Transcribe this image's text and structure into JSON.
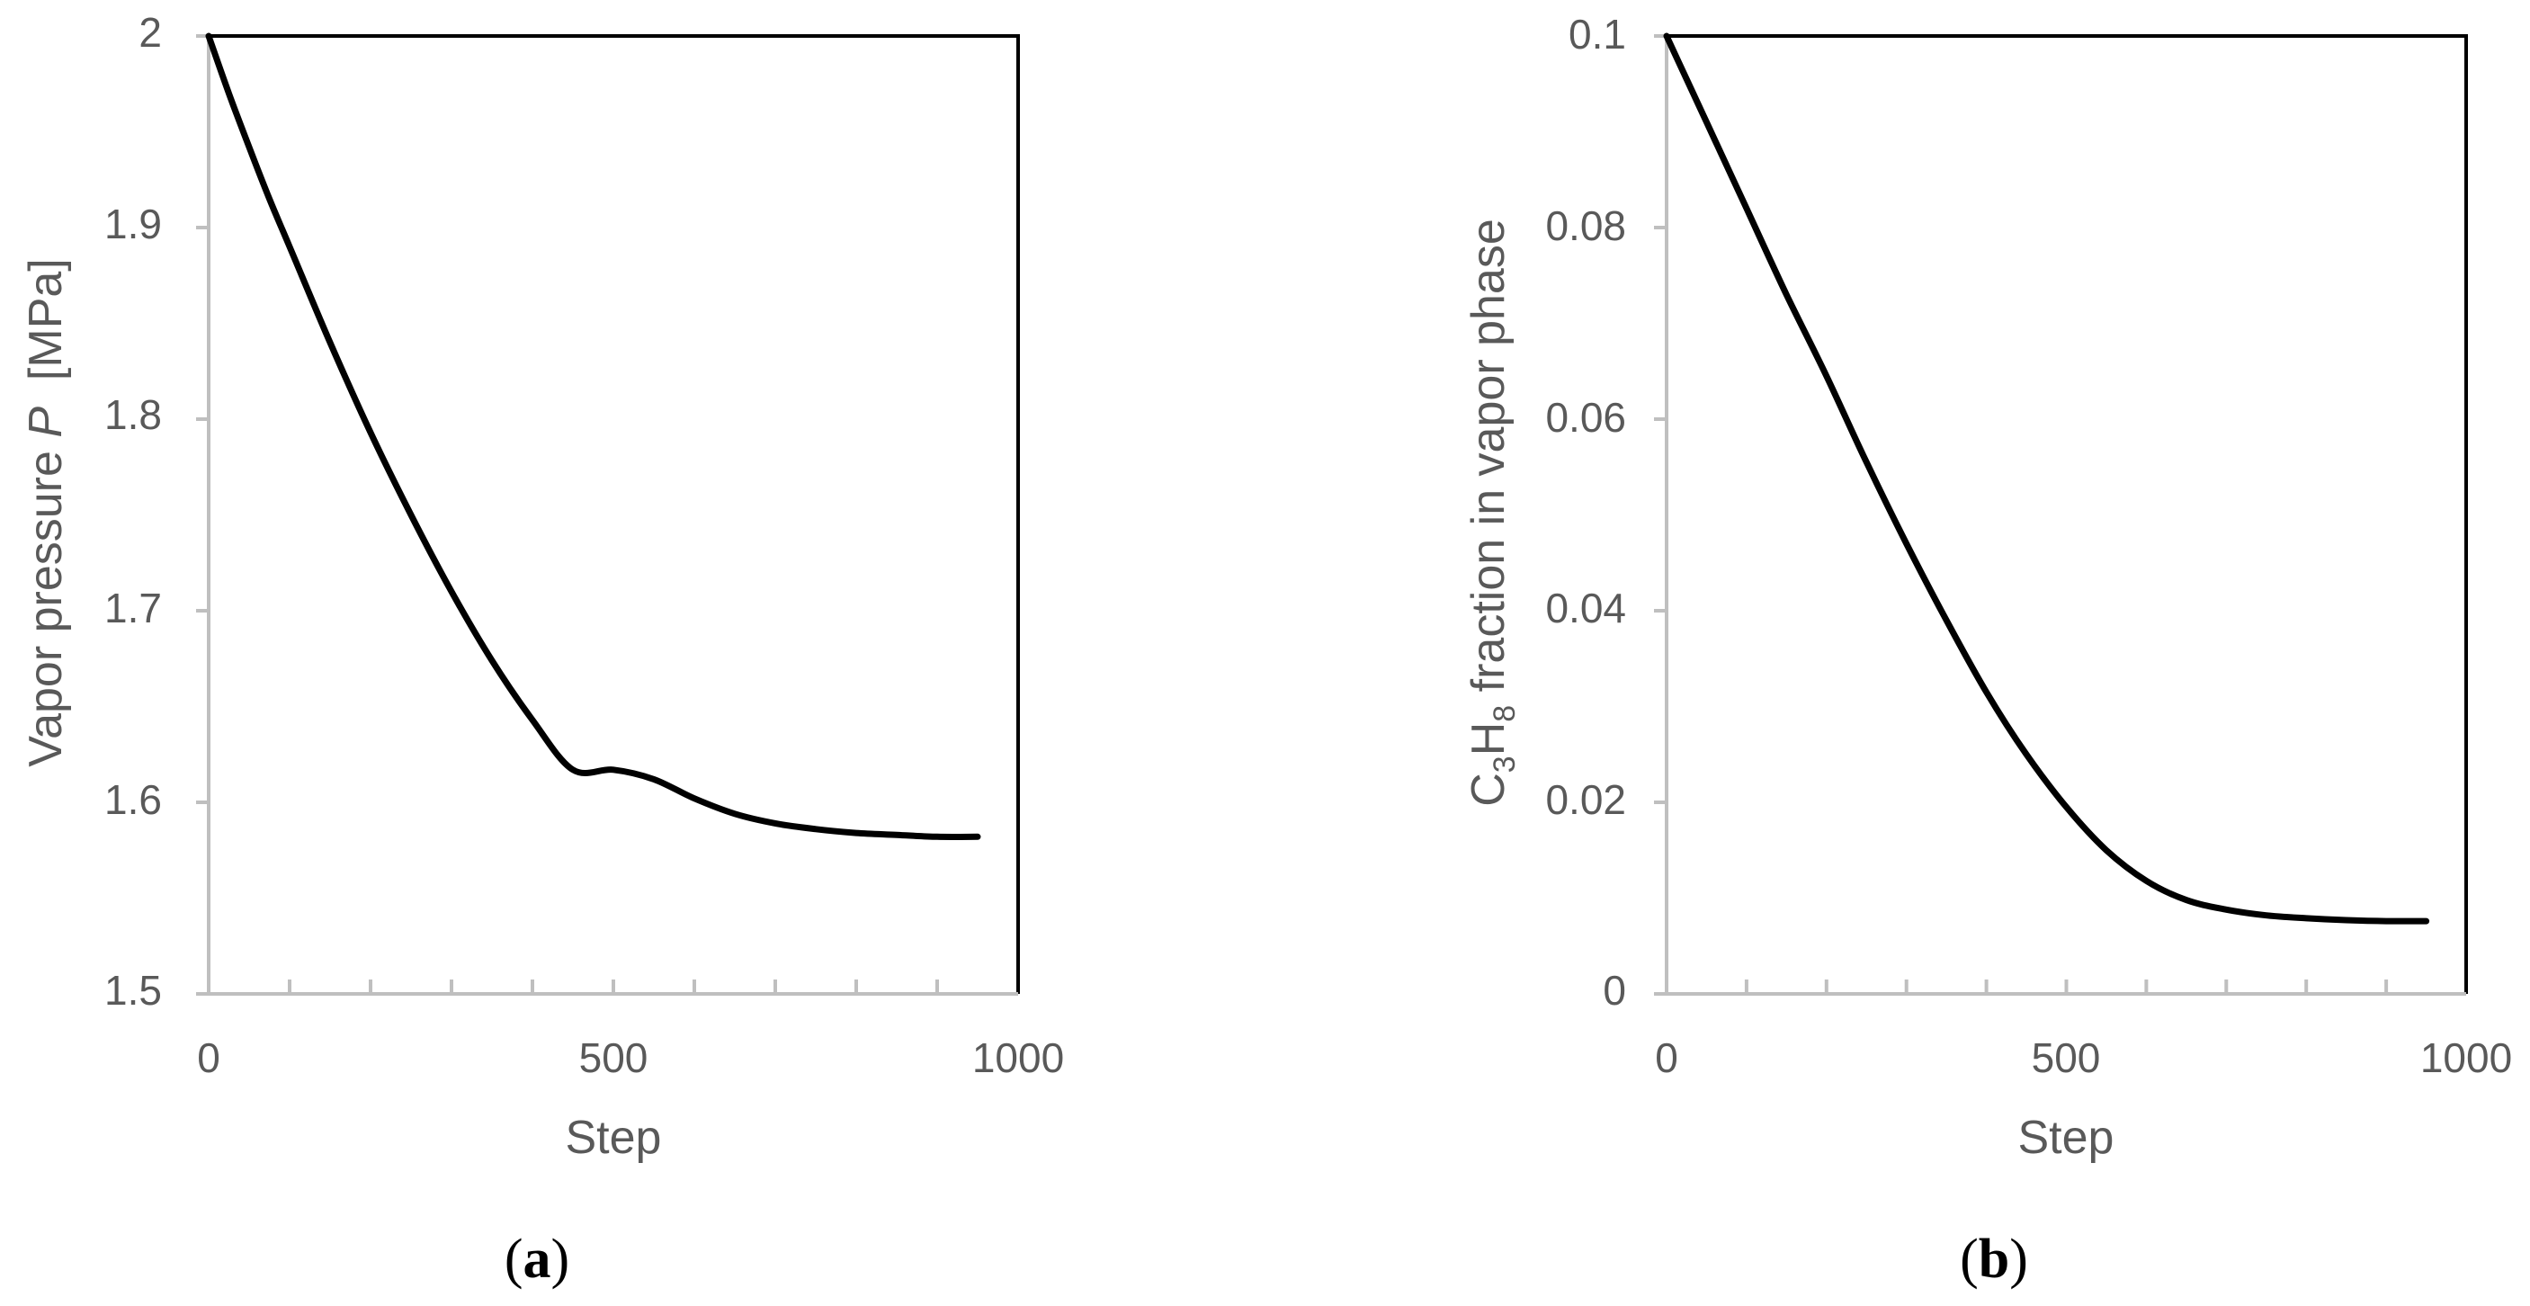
{
  "chart_data": [
    {
      "type": "line",
      "panel_label": {
        "open": "(",
        "letter": "a",
        "close": ")"
      },
      "xlabel": "Step",
      "ylabel": {
        "prefix": "Vapor pressure ",
        "symbol": "P",
        "suffix": "  [MPa]"
      },
      "xlim": [
        0,
        1000
      ],
      "ylim": [
        1.5,
        2
      ],
      "x_ticks": [
        0,
        500,
        1000
      ],
      "x_minor_step": 100,
      "y_ticks": [
        1.5,
        1.6,
        1.7,
        1.8,
        1.9,
        2
      ],
      "x_tick_labels": [
        "0",
        "500",
        "1000"
      ],
      "y_tick_labels": [
        "1.5",
        "1.6",
        "1.7",
        "1.8",
        "1.9",
        "2"
      ],
      "grid": false,
      "colors": {
        "line": "#000000",
        "axis": "#bfbfbf",
        "frame": "#000000",
        "text": "#595959"
      },
      "series": [
        {
          "x": [
            0,
            25,
            50,
            75,
            100,
            150,
            200,
            250,
            300,
            350,
            400,
            450,
            500,
            550,
            600,
            650,
            700,
            750,
            800,
            850,
            900,
            950
          ],
          "y": [
            2.0,
            1.97,
            1.942,
            1.915,
            1.89,
            1.84,
            1.793,
            1.75,
            1.71,
            1.674,
            1.643,
            1.617,
            1.617,
            1.612,
            1.602,
            1.594,
            1.589,
            1.586,
            1.584,
            1.583,
            1.582,
            1.582
          ]
        }
      ]
    },
    {
      "type": "line",
      "panel_label": {
        "open": "(",
        "letter": "b",
        "close": ")"
      },
      "xlabel": "Step",
      "ylabel": {
        "parts": [
          "C",
          "3",
          "H",
          "8",
          " fraction in vapor phase"
        ]
      },
      "xlim": [
        0,
        1000
      ],
      "ylim": [
        0,
        0.1
      ],
      "x_ticks": [
        0,
        500,
        1000
      ],
      "x_minor_step": 100,
      "y_ticks": [
        0,
        0.02,
        0.04,
        0.06,
        0.08,
        0.1
      ],
      "x_tick_labels": [
        "0",
        "500",
        "1000"
      ],
      "y_tick_labels": [
        "0",
        "0.02",
        "0.04",
        "0.06",
        "0.08",
        "0.1"
      ],
      "grid": false,
      "colors": {
        "line": "#000000",
        "axis": "#bfbfbf",
        "frame": "#000000",
        "text": "#595959"
      },
      "series": [
        {
          "x": [
            0,
            25,
            50,
            75,
            100,
            150,
            200,
            250,
            300,
            350,
            400,
            450,
            500,
            550,
            600,
            650,
            700,
            750,
            800,
            850,
            900,
            950
          ],
          "y": [
            0.1,
            0.0955,
            0.091,
            0.0865,
            0.082,
            0.073,
            0.0645,
            0.0555,
            0.047,
            0.039,
            0.0315,
            0.025,
            0.0195,
            0.015,
            0.0118,
            0.0098,
            0.0088,
            0.0082,
            0.0079,
            0.0077,
            0.0076,
            0.0076
          ]
        }
      ]
    }
  ]
}
